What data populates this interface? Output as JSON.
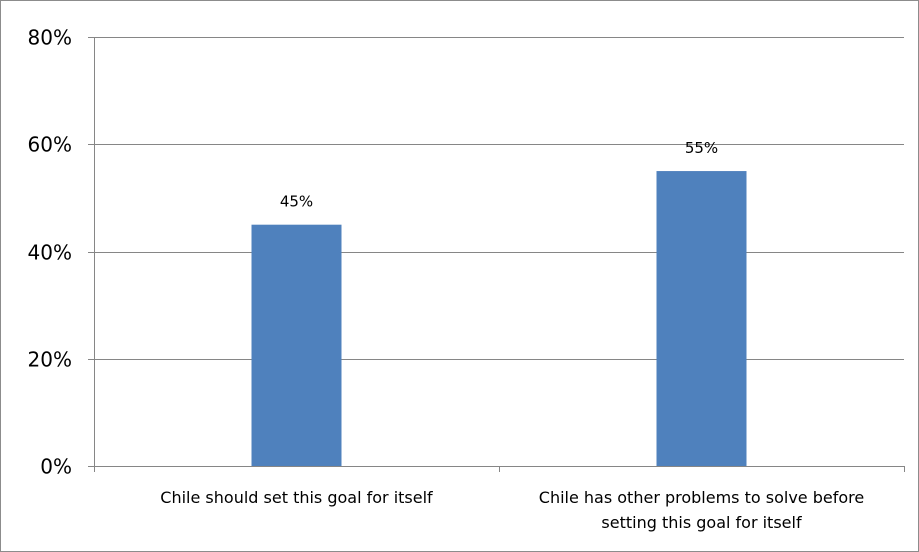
{
  "chart_data": {
    "type": "bar",
    "title": "",
    "xlabel": "",
    "ylabel": "",
    "categories": [
      [
        "Chile should set this goal for itself"
      ],
      [
        "Chile has other problems to solve before",
        "setting this goal for itself"
      ]
    ],
    "values": [
      45,
      55
    ],
    "data_labels": [
      "45%",
      "55%"
    ],
    "ylim": [
      0,
      80
    ],
    "yticks": [
      0,
      20,
      40,
      60,
      80
    ],
    "ytick_labels": [
      "0%",
      "20%",
      "40%",
      "60%",
      "80%"
    ],
    "grid": true,
    "legend": "none",
    "colors": {
      "bar": "#4f81bd",
      "grid": "#868686",
      "axis": "#868686",
      "text": "#000000"
    }
  }
}
